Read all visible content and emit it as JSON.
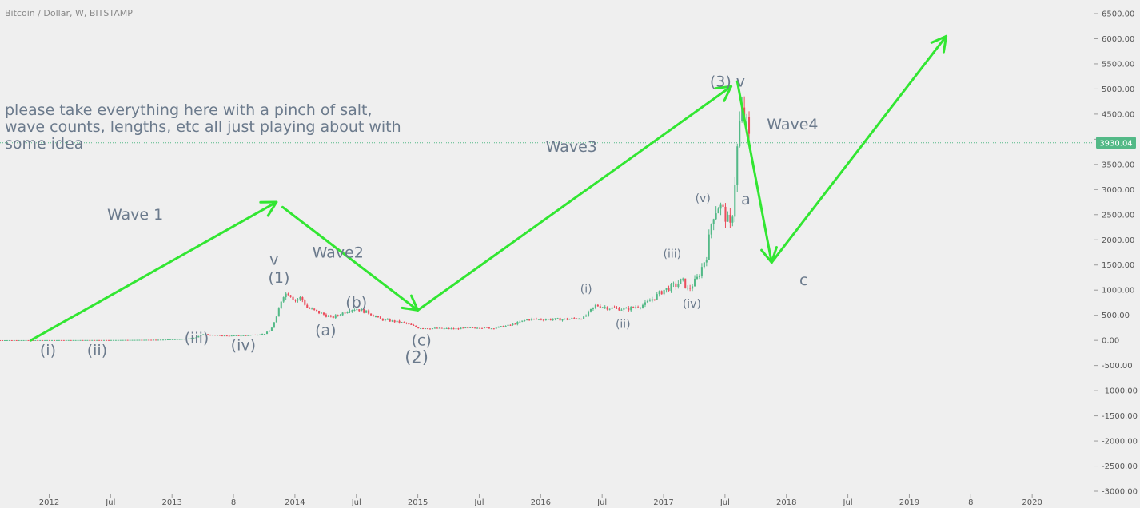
{
  "chart_data": {
    "type": "candlestick",
    "title": "Bitcoin / Dollar, W, BITSTAMP",
    "ylim": [
      -3000,
      6500
    ],
    "yticks": [
      6500,
      6000,
      5500,
      5000,
      4500,
      4000,
      3500,
      3000,
      2500,
      2000,
      1500,
      1000,
      500,
      0,
      -500,
      -1000,
      -1500,
      -2000,
      -2500,
      -3000
    ],
    "ytick_labels": [
      "6500.00",
      "6000.00",
      "5500.00",
      "5000.00",
      "4500.00",
      "4000.00",
      "3500.00",
      "3000.00",
      "2500.00",
      "2000.00",
      "1500.00",
      "1000.00",
      "500.00",
      "0.00",
      "-500.00",
      "-1000.00",
      "-1500.00",
      "-2000.00",
      "-2500.00",
      "-3000.00"
    ],
    "xlim": [
      2011.6,
      2020.5
    ],
    "xticks": [
      {
        "t": 2012.0,
        "label": "2012"
      },
      {
        "t": 2012.5,
        "label": "Jul"
      },
      {
        "t": 2013.0,
        "label": "2013"
      },
      {
        "t": 2013.5,
        "label": "8"
      },
      {
        "t": 2014.0,
        "label": "2014"
      },
      {
        "t": 2014.5,
        "label": "Jul"
      },
      {
        "t": 2015.0,
        "label": "2015"
      },
      {
        "t": 2015.5,
        "label": "Jul"
      },
      {
        "t": 2016.0,
        "label": "2016"
      },
      {
        "t": 2016.5,
        "label": "Jul"
      },
      {
        "t": 2017.0,
        "label": "2017"
      },
      {
        "t": 2017.5,
        "label": "Jul"
      },
      {
        "t": 2018.0,
        "label": "2018"
      },
      {
        "t": 2018.5,
        "label": "Jul"
      },
      {
        "t": 2019.0,
        "label": "2019"
      },
      {
        "t": 2019.5,
        "label": "8"
      },
      {
        "t": 2020.0,
        "label": "2020"
      }
    ],
    "last_price": 3930.04,
    "last_price_label": "3930.04",
    "price_path": [
      [
        2011.6,
        3
      ],
      [
        2012.5,
        6
      ],
      [
        2012.9,
        12
      ],
      [
        2013.1,
        30
      ],
      [
        2013.2,
        60
      ],
      [
        2013.25,
        130
      ],
      [
        2013.3,
        110
      ],
      [
        2013.45,
        90
      ],
      [
        2013.6,
        100
      ],
      [
        2013.75,
        130
      ],
      [
        2013.8,
        200
      ],
      [
        2013.85,
        450
      ],
      [
        2013.9,
        900
      ],
      [
        2013.95,
        950
      ],
      [
        2014.0,
        800
      ],
      [
        2014.05,
        850
      ],
      [
        2014.1,
        650
      ],
      [
        2014.2,
        550
      ],
      [
        2014.3,
        450
      ],
      [
        2014.35,
        500
      ],
      [
        2014.45,
        620
      ],
      [
        2014.5,
        630
      ],
      [
        2014.6,
        550
      ],
      [
        2014.7,
        420
      ],
      [
        2014.8,
        380
      ],
      [
        2014.9,
        340
      ],
      [
        2015.0,
        250
      ],
      [
        2015.1,
        240
      ],
      [
        2015.3,
        230
      ],
      [
        2015.5,
        260
      ],
      [
        2015.6,
        240
      ],
      [
        2015.75,
        300
      ],
      [
        2015.9,
        420
      ],
      [
        2016.0,
        420
      ],
      [
        2016.2,
        420
      ],
      [
        2016.35,
        450
      ],
      [
        2016.45,
        700
      ],
      [
        2016.55,
        650
      ],
      [
        2016.7,
        620
      ],
      [
        2016.85,
        720
      ],
      [
        2016.95,
        900
      ],
      [
        2017.0,
        1000
      ],
      [
        2017.1,
        1100
      ],
      [
        2017.15,
        1200
      ],
      [
        2017.2,
        1000
      ],
      [
        2017.28,
        1250
      ],
      [
        2017.35,
        1700
      ],
      [
        2017.4,
        2500
      ],
      [
        2017.45,
        2700
      ],
      [
        2017.5,
        2500
      ],
      [
        2017.55,
        2200
      ],
      [
        2017.6,
        3800
      ],
      [
        2017.62,
        4300
      ],
      [
        2017.65,
        4600
      ],
      [
        2017.68,
        4200
      ],
      [
        2017.7,
        3930
      ]
    ],
    "arrows": [
      {
        "from": [
          2011.85,
          0
        ],
        "to": [
          2013.85,
          2750
        ]
      },
      {
        "from": [
          2013.9,
          2650
        ],
        "to": [
          2015.0,
          600
        ]
      },
      {
        "from": [
          2015.0,
          600
        ],
        "to": [
          2017.55,
          5050
        ]
      },
      {
        "from": [
          2017.6,
          5150
        ],
        "to": [
          2017.88,
          1550
        ]
      },
      {
        "from": [
          2017.88,
          1550
        ],
        "to": [
          2019.3,
          6050
        ]
      }
    ],
    "annotations": [
      {
        "text": "Wave 1",
        "t": 2012.7,
        "v": 2400,
        "size": 19
      },
      {
        "text": "Wave2",
        "t": 2014.35,
        "v": 1650,
        "size": 19
      },
      {
        "text": "Wave3",
        "t": 2016.25,
        "v": 3750,
        "size": 19
      },
      {
        "text": "Wave4",
        "t": 2018.05,
        "v": 4200,
        "size": 19
      },
      {
        "text": "(1)",
        "t": 2013.87,
        "v": 1150,
        "size": 19
      },
      {
        "text": "v",
        "t": 2013.83,
        "v": 1500,
        "size": 19
      },
      {
        "text": "(2)",
        "t": 2014.99,
        "v": -450,
        "size": 21
      },
      {
        "text": "(3) v",
        "t": 2017.52,
        "v": 5050,
        "size": 19
      },
      {
        "text": "(i)",
        "t": 2011.99,
        "v": -300,
        "size": 19
      },
      {
        "text": "(ii)",
        "t": 2012.39,
        "v": -300,
        "size": 19
      },
      {
        "text": "(iii)",
        "t": 2013.2,
        "v": -50,
        "size": 19
      },
      {
        "text": "(iv)",
        "t": 2013.58,
        "v": -200,
        "size": 19
      },
      {
        "text": "(a)",
        "t": 2014.25,
        "v": 100,
        "size": 19
      },
      {
        "text": "(b)",
        "t": 2014.5,
        "v": 650,
        "size": 19
      },
      {
        "text": "(c)",
        "t": 2015.03,
        "v": -100,
        "size": 19
      },
      {
        "text": "(i)",
        "t": 2016.37,
        "v": 950,
        "size": 14
      },
      {
        "text": "(ii)",
        "t": 2016.67,
        "v": 250,
        "size": 14
      },
      {
        "text": "(iii)",
        "t": 2017.07,
        "v": 1650,
        "size": 14
      },
      {
        "text": "(iv)",
        "t": 2017.23,
        "v": 650,
        "size": 14
      },
      {
        "text": "(v)",
        "t": 2017.32,
        "v": 2750,
        "size": 14
      },
      {
        "text": "a",
        "t": 2017.67,
        "v": 2700,
        "size": 19
      },
      {
        "text": "c",
        "t": 2018.14,
        "v": 1100,
        "size": 19
      }
    ],
    "note_lines": [
      "please take everything here with a pinch of salt,",
      "wave counts, lengths, etc all just playing about with",
      "some idea"
    ],
    "grid": false,
    "colors": {
      "up": "#53b987",
      "down": "#eb4d5c",
      "arrow": "#32e632",
      "label": "#6b7a8c",
      "price_line": "#53b987",
      "price_badge": "#53b987"
    }
  }
}
